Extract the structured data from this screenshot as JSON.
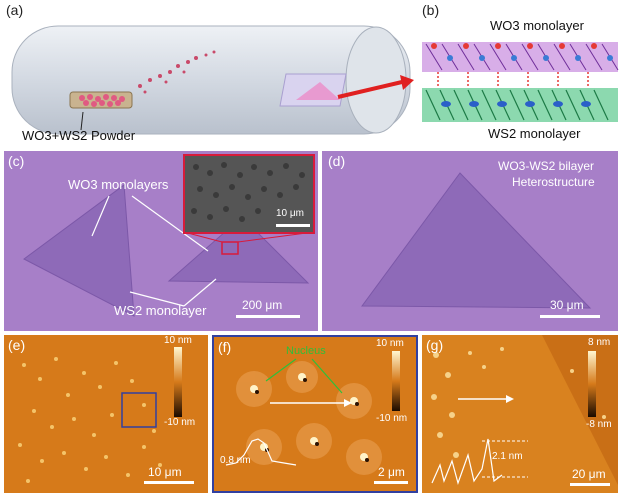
{
  "panels": {
    "a": {
      "label": "(a)",
      "powder_label": "WO3+WS2 Powder"
    },
    "b": {
      "label": "(b)",
      "top_label": "WO3 monolayer",
      "bottom_label": "WS2 monolayer"
    },
    "c": {
      "label": "(c)",
      "annotation_top": "WO3 monolayers",
      "annotation_bottom": "WS2 monolayer",
      "inset_scale": "10 μm",
      "scale": "200 μm"
    },
    "d": {
      "label": "(d)",
      "title_line1": "WO3-WS2 bilayer",
      "title_line2": "Heterostructure",
      "scale": "30 μm"
    },
    "e": {
      "label": "(e)",
      "cb_max": "10 nm",
      "cb_min": "-10 nm",
      "scale": "10 μm"
    },
    "f": {
      "label": "(f)",
      "annotation": "Nucleus",
      "cb_max": "10 nm",
      "cb_min": "-10 nm",
      "height": "0.8 nm",
      "scale": "2 μm"
    },
    "g": {
      "label": "(g)",
      "cb_max": "8 nm",
      "cb_min": "-8 nm",
      "height": "2.1 nm",
      "scale": "20 μm"
    }
  },
  "colors": {
    "optical_purple": "#a77fc8",
    "flake_purple": "#8e6ab8",
    "afm_orange": "#d67a1a",
    "afm_dark": "#8a3a08",
    "arrow_red": "#e02020",
    "inset_red": "#d81b3b",
    "nucleus_green": "#2fbf3a",
    "frame_blue": "#3140a0"
  },
  "icons": [
    "arrow-icon",
    "colorbar-icon"
  ]
}
